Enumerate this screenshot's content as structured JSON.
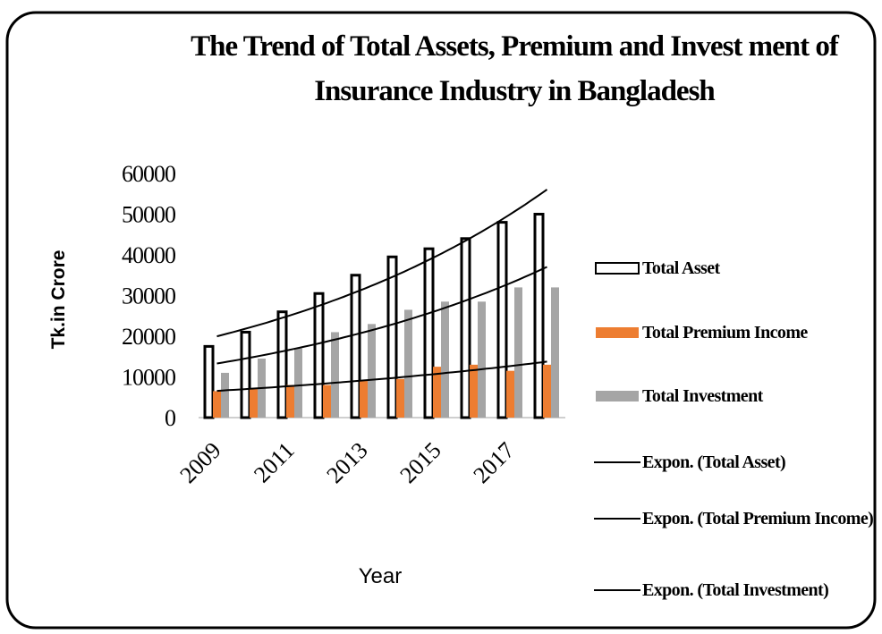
{
  "chart_data": {
    "type": "bar",
    "title": "The Trend of Total Assets,  Premium and Invest ment of Insurance Industry in Bangladesh",
    "x_label": "Year",
    "y_label": "Tk.in Crore",
    "categories": [
      "2009",
      null,
      "2011",
      null,
      "2013",
      null,
      "2015",
      null,
      "2017",
      null
    ],
    "series": [
      {
        "name": "Total Asset",
        "color": "#ffffff",
        "stroke": "#000000",
        "values": [
          17500,
          21000,
          26000,
          30500,
          35000,
          39500,
          41500,
          44000,
          48000,
          50000
        ],
        "trendline": {
          "type": "exponential",
          "name": "Expon. (Total Asset)"
        }
      },
      {
        "name": "Total Premium Income",
        "color": "#ed7d31",
        "values": [
          6500,
          7000,
          8000,
          8000,
          9000,
          9500,
          12500,
          13000,
          11500,
          13000
        ],
        "trendline": {
          "type": "exponential",
          "name": "Expon. (Total Premium Income)"
        }
      },
      {
        "name": "Total Investment",
        "color": "#a5a5a5",
        "values": [
          11000,
          14500,
          17000,
          21000,
          23000,
          26500,
          28500,
          28500,
          32000,
          32000
        ],
        "trendline": {
          "type": "exponential",
          "name": "Expon. (Total Investment)"
        }
      }
    ],
    "ylim": [
      0,
      60000
    ],
    "yticks": [
      0,
      10000,
      20000,
      30000,
      40000,
      50000,
      60000
    ],
    "grid": false,
    "legend": "right"
  }
}
